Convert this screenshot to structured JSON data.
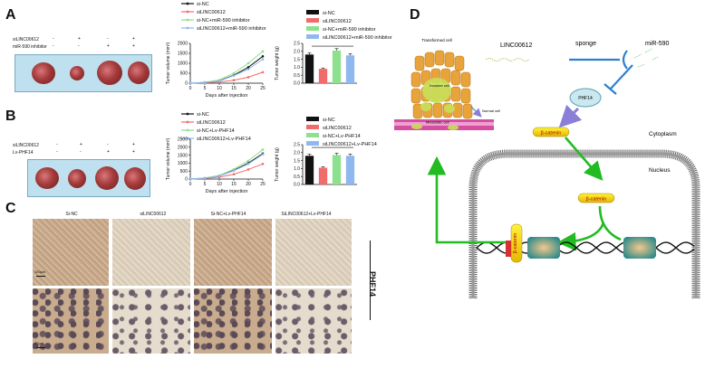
{
  "panels": {
    "A": "A",
    "B": "B",
    "C": "C",
    "D": "D"
  },
  "colors": {
    "black": "#111111",
    "red": "#f26b6b",
    "green": "#8de08d",
    "blue": "#8fb8f0"
  },
  "panelA": {
    "rows": [
      "siLINC00612",
      "miR-590 inhibitor"
    ],
    "signs": [
      [
        "-",
        "+",
        "-",
        "+"
      ],
      [
        "-",
        "-",
        "+",
        "+"
      ]
    ],
    "legend": [
      "si-NC",
      "siLINC00612",
      "si-NC+miR-590 inhibitor",
      "siLINC00612+miR-590 inhibitor"
    ],
    "line_ylabel": "Tumor volume (mm³)",
    "line_xlabel": "Days after injection",
    "bar_ylabel": "Tumor weight (g)",
    "yticks_line": [
      "0",
      "500",
      "1000",
      "1500",
      "2000"
    ],
    "xticks": [
      "0",
      "5",
      "10",
      "15",
      "20",
      "25"
    ],
    "yticks_bar": [
      "0.0",
      "0.5",
      "1.0",
      "1.5",
      "2.0",
      "2.5"
    ]
  },
  "panelB": {
    "rows": [
      "siLINC00612",
      "Lv-PHF14"
    ],
    "signs": [
      [
        "-",
        "+",
        "-",
        "+"
      ],
      [
        "-",
        "-",
        "+",
        "+"
      ]
    ],
    "legend": [
      "si-NC",
      "siLINC00612",
      "si-NC+Lv-PHF14",
      "siLINC00612+Lv-PHF14"
    ],
    "line_ylabel": "Tumor volume (mm³)",
    "line_xlabel": "Days after injection",
    "bar_ylabel": "Tumor weight (g)",
    "yticks_line": [
      "0",
      "500",
      "1000",
      "1500",
      "2000",
      "2500"
    ],
    "xticks": [
      "0",
      "5",
      "10",
      "15",
      "20",
      "25"
    ],
    "yticks_bar": [
      "0.0",
      "0.5",
      "1.0",
      "1.5",
      "2.0",
      "2.5"
    ]
  },
  "panelC": {
    "columns": [
      "Si-NC",
      "siLINC00612",
      "Si-NC+Lv-PHF14",
      "SiLINC00612+Lv-PHF14"
    ],
    "side_label": "PHF14",
    "scale_top": "100μm",
    "scale_bottom": "20μm"
  },
  "panelD": {
    "lnc": "LINC00612",
    "sponge": "sponge",
    "mir": "miR-590",
    "phf14": "PHF14",
    "beta1": "β-catenin",
    "beta2": "β-catenin",
    "beta3": "β-catenin",
    "cytoplasm": "Cytoplasm",
    "nucleus": "Nucleus",
    "transformed": "Transformed cell",
    "invasive": "Invasive cell",
    "normal": "Normal cell",
    "metastatic": "Metastatic cell"
  },
  "chart_data": [
    {
      "type": "line",
      "x": [
        0,
        5,
        10,
        15,
        20,
        25
      ],
      "xlabel": "Days after injection",
      "ylabel": "Tumor volume (mm³)",
      "ylim": [
        0,
        2000
      ],
      "series": [
        {
          "name": "si-NC",
          "values": [
            0,
            40,
            120,
            400,
            800,
            1350
          ]
        },
        {
          "name": "siLINC00612",
          "values": [
            0,
            30,
            60,
            150,
            300,
            550
          ]
        },
        {
          "name": "si-NC+miR-590 inhibitor",
          "values": [
            0,
            50,
            160,
            500,
            1000,
            1600
          ]
        },
        {
          "name": "siLINC00612+miR-590 inhibitor",
          "values": [
            0,
            40,
            110,
            380,
            700,
            1200
          ]
        }
      ]
    },
    {
      "type": "bar",
      "categories": [
        "si-NC",
        "siLINC00612",
        "si-NC+miR-590 inhibitor",
        "siLINC00612+miR-590 inhibitor"
      ],
      "values": [
        1.8,
        0.9,
        2.05,
        1.75
      ],
      "ylabel": "Tumor weight (g)",
      "ylim": [
        0,
        2.5
      ]
    },
    {
      "type": "line",
      "x": [
        0,
        5,
        10,
        15,
        20,
        25
      ],
      "xlabel": "Days after injection",
      "ylabel": "Tumor volume (mm³)",
      "ylim": [
        0,
        2500
      ],
      "series": [
        {
          "name": "si-NC",
          "values": [
            0,
            60,
            200,
            550,
            1000,
            1600
          ]
        },
        {
          "name": "siLINC00612",
          "values": [
            0,
            40,
            120,
            300,
            600,
            950
          ]
        },
        {
          "name": "si-NC+Lv-PHF14",
          "values": [
            0,
            70,
            230,
            620,
            1150,
            1850
          ]
        },
        {
          "name": "siLINC00612+Lv-PHF14",
          "values": [
            0,
            60,
            190,
            520,
            950,
            1550
          ]
        }
      ]
    },
    {
      "type": "bar",
      "categories": [
        "si-NC",
        "siLINC00612",
        "si-NC+Lv-PHF14",
        "siLINC00612+Lv-PHF14"
      ],
      "values": [
        1.8,
        1.05,
        1.85,
        1.8
      ],
      "ylabel": "Tumor weight (g)",
      "ylim": [
        0,
        2.5
      ]
    }
  ]
}
